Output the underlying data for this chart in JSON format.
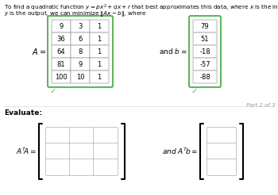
{
  "title_line1": "To find a quadratic function $y = px^2 + qx + r$ that best approximates this data, where $x$ is the input and",
  "title_line2": "$y$ is the output, we can minimize $\\|Ax - b\\|$, where",
  "A_label": "$A =$",
  "A_matrix": [
    [
      "9",
      "3",
      "1"
    ],
    [
      "36",
      "6",
      "1"
    ],
    [
      "64",
      "8",
      "1"
    ],
    [
      "81",
      "9",
      "1"
    ],
    [
      "100",
      "10",
      "1"
    ]
  ],
  "b_label": "and $b =$",
  "b_vector": [
    "79",
    "51",
    "$-18$",
    "$-57$",
    "$-88$"
  ],
  "evaluate_label": "Evaluate:",
  "ATA_label": "$A^T\\!A =$",
  "ATb_label": "and $A^T\\!b =$",
  "part_label": "Part 2 of 3",
  "bg_color": "#ffffff",
  "green_color": "#5cb85c",
  "gray_cell_color": "#aaaaaa",
  "text_color": "#000000",
  "check_color": "#5cb85c",
  "part_color": "#999999"
}
